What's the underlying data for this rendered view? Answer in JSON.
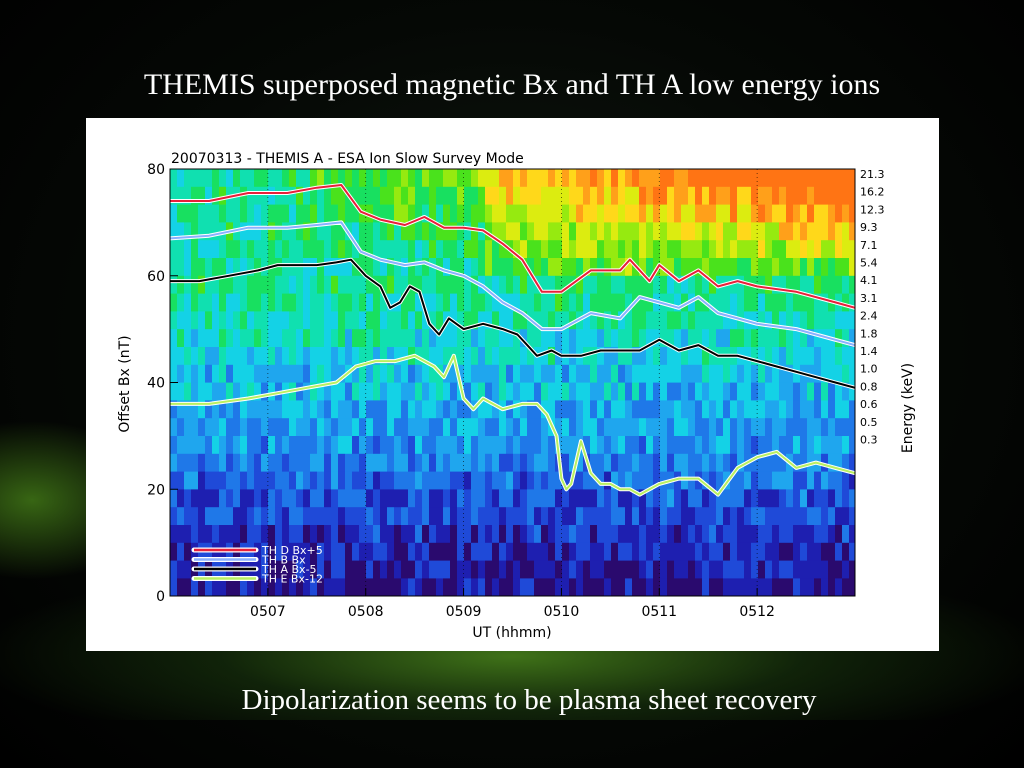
{
  "slide": {
    "title": "THEMIS superposed magnetic Bx and TH A low energy ions",
    "caption": "Dipolarization seems to be plasma sheet recovery"
  },
  "chart_data": {
    "type": "line",
    "title": "20070313 - THEMIS A - ESA Ion Slow Survey Mode",
    "xlabel": "UT (hhmm)",
    "ylabel": "Offset Bx (nT)",
    "y2label": "Energy (keV)",
    "ylim": [
      0,
      80
    ],
    "xlim": [
      0,
      700
    ],
    "x_ticks": [
      {
        "x": 100,
        "label": "0507"
      },
      {
        "x": 200,
        "label": "0508"
      },
      {
        "x": 300,
        "label": "0509"
      },
      {
        "x": 400,
        "label": "0510"
      },
      {
        "x": 500,
        "label": "0511"
      },
      {
        "x": 600,
        "label": "0512"
      }
    ],
    "y_ticks": [
      0,
      20,
      40,
      60,
      80
    ],
    "energy_labels": [
      "21.3",
      "16.2",
      "12.3",
      "9.3",
      "7.1",
      "5.4",
      "4.1",
      "3.1",
      "2.4",
      "1.8",
      "1.4",
      "1.0",
      "0.8",
      "0.6",
      "0.5",
      "0.3"
    ],
    "legend_position": "bottom-left",
    "series": [
      {
        "name": "TH D Bx+5",
        "color": "#e8203a",
        "x": [
          0,
          40,
          80,
          120,
          150,
          175,
          195,
          215,
          240,
          260,
          280,
          300,
          320,
          340,
          360,
          380,
          400,
          430,
          460,
          470,
          490,
          500,
          520,
          540,
          560,
          580,
          600,
          640,
          680,
          700
        ],
        "y": [
          74,
          74,
          75.5,
          75.5,
          76.5,
          77,
          72,
          70.5,
          69.5,
          71,
          69,
          69,
          68.5,
          66,
          63,
          57,
          57,
          61,
          61,
          63,
          59,
          62,
          59,
          61,
          58,
          59,
          58,
          57,
          55,
          54
        ]
      },
      {
        "name": "TH B Bx",
        "color": "#8ab0ff",
        "x": [
          0,
          40,
          80,
          120,
          150,
          175,
          195,
          215,
          240,
          260,
          280,
          300,
          320,
          340,
          360,
          380,
          400,
          430,
          460,
          480,
          500,
          520,
          540,
          560,
          580,
          600,
          640,
          680,
          700
        ],
        "y": [
          67,
          67.5,
          69,
          69,
          69.5,
          70,
          64.5,
          63,
          62,
          62.5,
          61,
          60,
          58,
          55,
          53,
          50,
          50,
          53,
          52,
          56,
          55,
          54,
          56,
          53,
          52,
          51,
          50,
          48,
          47
        ]
      },
      {
        "name": "TH A Bx-5",
        "color": "#000000",
        "x": [
          0,
          30,
          60,
          90,
          110,
          130,
          150,
          170,
          185,
          200,
          215,
          225,
          235,
          245,
          255,
          265,
          275,
          285,
          300,
          320,
          340,
          355,
          365,
          375,
          390,
          400,
          420,
          440,
          460,
          480,
          500,
          520,
          540,
          560,
          580,
          600,
          620,
          640,
          660,
          680,
          700
        ],
        "y": [
          59,
          59,
          60,
          61,
          62,
          62,
          62,
          62.5,
          63,
          60,
          58,
          54,
          55,
          58,
          57,
          51,
          49,
          52,
          50,
          51,
          50,
          49,
          47,
          45,
          46,
          45,
          45,
          46,
          46,
          46,
          48,
          46,
          47,
          45,
          45,
          44,
          43,
          42,
          41,
          40,
          39
        ]
      },
      {
        "name": "TH E Bx-12",
        "color": "#b9f060",
        "x": [
          0,
          40,
          80,
          110,
          140,
          170,
          190,
          210,
          230,
          250,
          270,
          280,
          290,
          300,
          310,
          320,
          330,
          340,
          360,
          375,
          385,
          395,
          400,
          405,
          410,
          420,
          430,
          440,
          450,
          460,
          470,
          480,
          490,
          500,
          520,
          540,
          560,
          580,
          600,
          620,
          640,
          660,
          680,
          700
        ],
        "y": [
          36,
          36,
          37,
          38,
          39,
          40,
          43,
          44,
          44,
          45,
          43,
          41,
          45,
          37,
          35,
          37,
          36,
          35,
          36,
          36,
          34,
          30,
          22,
          20,
          21,
          29,
          23,
          21,
          21,
          20,
          20,
          19,
          20,
          21,
          22,
          22,
          19,
          24,
          26,
          27,
          24,
          25,
          24,
          23
        ]
      }
    ]
  }
}
